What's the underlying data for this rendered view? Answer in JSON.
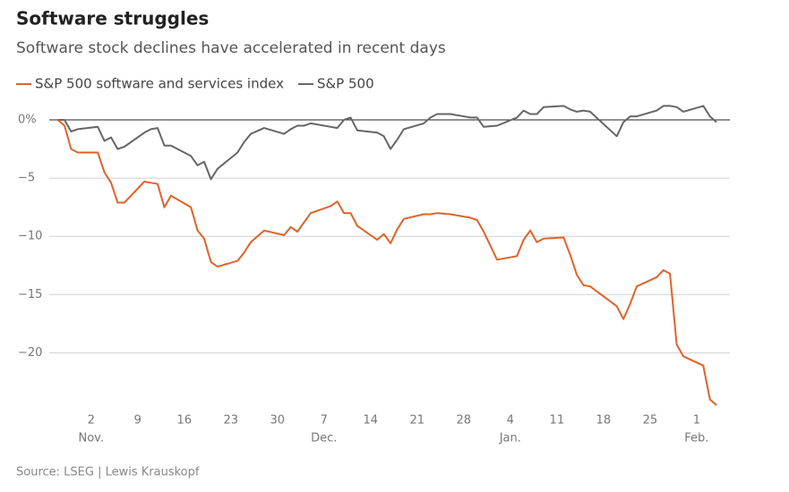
{
  "chart_data": {
    "type": "line",
    "title": "Software struggles",
    "subtitle": "Software stock declines have accelerated in recent days",
    "source": "Source: LSEG | Lewis Krauskopf",
    "x": [
      "Oct. 28",
      "Oct. 29",
      "Oct. 30",
      "Oct. 31",
      "Nov. 3",
      "Nov. 4",
      "Nov. 5",
      "Nov. 6",
      "Nov. 7",
      "Nov. 10",
      "Nov. 11",
      "Nov. 12",
      "Nov. 13",
      "Nov. 14",
      "Nov. 17",
      "Nov. 18",
      "Nov. 19",
      "Nov. 20",
      "Nov. 21",
      "Nov. 24",
      "Nov. 25",
      "Nov. 26",
      "Nov. 28",
      "Dec. 1",
      "Dec. 2",
      "Dec. 3",
      "Dec. 4",
      "Dec. 5",
      "Dec. 8",
      "Dec. 9",
      "Dec. 10",
      "Dec. 11",
      "Dec. 12",
      "Dec. 15",
      "Dec. 16",
      "Dec. 17",
      "Dec. 18",
      "Dec. 19",
      "Dec. 22",
      "Dec. 23",
      "Dec. 24",
      "Dec. 26",
      "Dec. 29",
      "Dec. 30",
      "Dec. 31",
      "Jan. 2",
      "Jan. 5",
      "Jan. 6",
      "Jan. 7",
      "Jan. 8",
      "Jan. 9",
      "Jan. 12",
      "Jan. 13",
      "Jan. 14",
      "Jan. 15",
      "Jan. 16",
      "Jan. 20",
      "Jan. 21",
      "Jan. 22",
      "Jan. 23",
      "Jan. 26",
      "Jan. 27",
      "Jan. 28",
      "Jan. 29",
      "Jan. 30",
      "Feb. 2",
      "Feb. 3",
      "Feb. 4"
    ],
    "series": [
      {
        "name": "S&P 500 software and services index",
        "color": "#e0632a",
        "values": [
          0,
          -0.5,
          -2.5,
          -2.8,
          -2.8,
          -4.5,
          -5.4,
          -7.1,
          -7.1,
          -5.3,
          -5.4,
          -5.5,
          -7.5,
          -6.5,
          -7.5,
          -9.5,
          -10.2,
          -12.2,
          -12.6,
          -12.1,
          -11.4,
          -10.5,
          -9.5,
          -9.9,
          -9.2,
          -9.6,
          -8.8,
          -8.0,
          -7.4,
          -7.0,
          -8.0,
          -8.0,
          -9.1,
          -10.3,
          -9.8,
          -10.6,
          -9.4,
          -8.5,
          -8.1,
          -8.1,
          -8.0,
          -8.1,
          -8.4,
          -8.6,
          -9.6,
          -12.0,
          -11.7,
          -10.3,
          -9.5,
          -10.5,
          -10.2,
          -10.1,
          -11.6,
          -13.3,
          -14.2,
          -14.3,
          -16.0,
          -17.1,
          -15.8,
          -14.3,
          -13.5,
          -12.9,
          -13.2,
          -19.3,
          -20.3,
          -21.1,
          -24.0,
          -24.5
        ]
      },
      {
        "name": "S&P 500",
        "color": "#666666",
        "values": [
          0,
          0,
          -1.0,
          -0.8,
          -0.6,
          -1.8,
          -1.5,
          -2.5,
          -2.3,
          -1.1,
          -0.8,
          -0.7,
          -2.2,
          -2.2,
          -3.1,
          -3.9,
          -3.6,
          -5.1,
          -4.2,
          -2.8,
          -1.9,
          -1.2,
          -0.7,
          -1.2,
          -0.8,
          -0.5,
          -0.5,
          -0.3,
          -0.6,
          -0.7,
          0,
          0.2,
          -0.9,
          -1.1,
          -1.4,
          -2.5,
          -1.7,
          -0.8,
          -0.3,
          0.2,
          0.5,
          0.5,
          0.2,
          0.2,
          -0.6,
          -0.5,
          0.2,
          0.8,
          0.5,
          0.5,
          1.1,
          1.2,
          0.9,
          0.7,
          0.8,
          0.7,
          -1.4,
          -0.2,
          0.3,
          0.3,
          0.8,
          1.2,
          1.2,
          1.1,
          0.7,
          1.2,
          0.3,
          -0.2
        ]
      }
    ],
    "xlim": [
      "Oct. 22",
      "Feb. 6"
    ],
    "xticks": [
      {
        "value": "Nov. 2",
        "label": "2"
      },
      {
        "value": "Nov. 9",
        "label": "9"
      },
      {
        "value": "Nov. 16",
        "label": "16"
      },
      {
        "value": "Nov. 23",
        "label": "23"
      },
      {
        "value": "Nov. 30",
        "label": "30"
      },
      {
        "value": "Dec. 7",
        "label": "7"
      },
      {
        "value": "Dec. 14",
        "label": "14"
      },
      {
        "value": "Dec. 21",
        "label": "21"
      },
      {
        "value": "Dec. 28",
        "label": "28"
      },
      {
        "value": "Jan. 4",
        "label": "4"
      },
      {
        "value": "Jan. 11",
        "label": "11"
      },
      {
        "value": "Jan. 18",
        "label": "18"
      },
      {
        "value": "Jan. 25",
        "label": "25"
      },
      {
        "value": "Feb. 1",
        "label": "1"
      }
    ],
    "month_labels": [
      {
        "value": "Nov. 2",
        "label": "Nov."
      },
      {
        "value": "Dec. 7",
        "label": "Dec."
      },
      {
        "value": "Jan. 4",
        "label": "Jan."
      },
      {
        "value": "Feb. 1",
        "label": "Feb."
      }
    ],
    "ylim": [
      -25,
      1.5
    ],
    "yticks": [
      {
        "value": 0,
        "label": "0%"
      },
      {
        "value": -5,
        "label": "−5"
      },
      {
        "value": -10,
        "label": "−10"
      },
      {
        "value": -15,
        "label": "−15"
      },
      {
        "value": -20,
        "label": "−20"
      }
    ],
    "grid": true
  }
}
